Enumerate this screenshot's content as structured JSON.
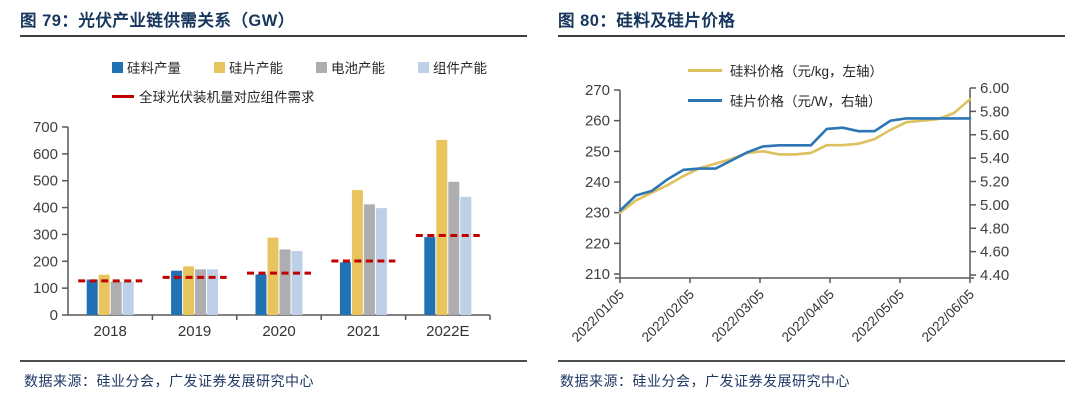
{
  "source_note": "数据来源：硅业分会，广发证券发展研究中心",
  "colors": {
    "title_text": "#17365D",
    "source_text": "#1F3864",
    "axis": "#595959",
    "tick_label": "#404040",
    "demand_red": "#C00000"
  },
  "chart_data": [
    {
      "id": "fig79",
      "type": "bar",
      "title": "图 79：光伏产业链供需关系（GW）",
      "categories": [
        "2018",
        "2019",
        "2020",
        "2021",
        "2022E"
      ],
      "series": [
        {
          "name": "硅料产量",
          "color": "#2172B4",
          "values": [
            132,
            165,
            151,
            196,
            290
          ]
        },
        {
          "name": "硅片产能",
          "color": "#E7C45E",
          "values": [
            150,
            181,
            288,
            465,
            652
          ]
        },
        {
          "name": "电池产能",
          "color": "#AEAEB0",
          "values": [
            124,
            170,
            244,
            412,
            496
          ]
        },
        {
          "name": "组件产能",
          "color": "#BDD0E8",
          "values": [
            124,
            170,
            238,
            398,
            440
          ]
        }
      ],
      "line_series": {
        "name": "全球光伏装机量对应组件需求",
        "color": "#C00000",
        "style": "dashed",
        "values": [
          127,
          140,
          156,
          201,
          296
        ]
      },
      "ylim": [
        0,
        700
      ],
      "yticks": [
        0,
        100,
        200,
        300,
        400,
        500,
        600,
        700
      ],
      "grid": false,
      "legend_position": "top",
      "source": "数据来源：硅业分会，广发证券发展研究中心"
    },
    {
      "id": "fig80",
      "type": "line",
      "title": "图 80：硅料及硅片价格",
      "x_tick_labels": [
        "2022/01/05",
        "2022/02/05",
        "2022/03/05",
        "2022/04/05",
        "2022/05/05",
        "2022/06/05"
      ],
      "left_axis": {
        "ylim": [
          210,
          270
        ],
        "ticks": [
          210,
          220,
          230,
          240,
          250,
          260,
          270
        ]
      },
      "right_axis": {
        "ylim": [
          4.4,
          6.0
        ],
        "tick_labels": [
          "4.40",
          "4.60",
          "4.80",
          "5.00",
          "5.20",
          "5.40",
          "5.60",
          "5.80",
          "6.00"
        ]
      },
      "series": [
        {
          "name": "硅料价格（元/kg，左轴）",
          "axis": "left",
          "color": "#DEC15F",
          "values": [
            230,
            234,
            236.5,
            239,
            242,
            244.5,
            246,
            247.5,
            249.5,
            250,
            249,
            249,
            249.5,
            252,
            252,
            252.5,
            254,
            257,
            259.5,
            260,
            260.5,
            262.5,
            267
          ]
        },
        {
          "name": "硅片价格（元/W，右轴）",
          "axis": "right",
          "color": "#2E75B6",
          "values": [
            4.95,
            5.08,
            5.12,
            5.22,
            5.3,
            5.31,
            5.31,
            5.38,
            5.45,
            5.5,
            5.51,
            5.51,
            5.51,
            5.65,
            5.66,
            5.63,
            5.63,
            5.72,
            5.74,
            5.74,
            5.74,
            5.74,
            5.74
          ]
        }
      ],
      "grid": false,
      "legend_position": "top",
      "source": "数据来源：硅业分会，广发证券发展研究中心"
    }
  ]
}
